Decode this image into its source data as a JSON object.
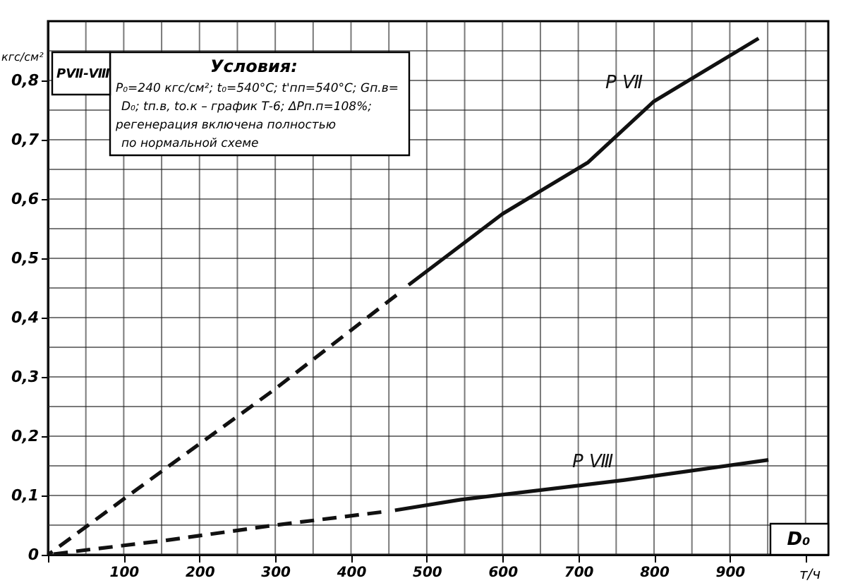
{
  "chart_data": {
    "type": "line",
    "ylabel": "PⅦ-Ⅷ",
    "xlabel": "D₀",
    "xlim": [
      0,
      1030
    ],
    "ylim": [
      0,
      0.9
    ],
    "xticks": [
      {
        "value": 0,
        "label": null
      },
      {
        "value": 50,
        "label": null
      },
      100,
      {
        "value": 150,
        "label": null
      },
      200,
      {
        "value": 250,
        "label": null
      },
      300,
      {
        "value": 350,
        "label": null
      },
      400,
      {
        "value": 450,
        "label": null
      },
      500,
      {
        "value": 550,
        "label": null
      },
      600,
      {
        "value": 650,
        "label": null
      },
      700,
      {
        "value": 750,
        "label": null
      },
      800,
      {
        "value": 850,
        "label": null
      },
      900,
      {
        "value": 950,
        "label": null
      },
      {
        "value": 1000,
        "label": null
      }
    ],
    "yticks": [
      {
        "value": 0,
        "label": "0"
      },
      {
        "value": 0.05,
        "label": null
      },
      {
        "value": 0.1,
        "label": "0,1"
      },
      {
        "value": 0.15,
        "label": null
      },
      {
        "value": 0.2,
        "label": "0,2"
      },
      {
        "value": 0.25,
        "label": null
      },
      {
        "value": 0.3,
        "label": "0,3"
      },
      {
        "value": 0.35,
        "label": null
      },
      {
        "value": 0.4,
        "label": "0,4"
      },
      {
        "value": 0.45,
        "label": null
      },
      {
        "value": 0.5,
        "label": "0,5"
      },
      {
        "value": 0.55,
        "label": null
      },
      {
        "value": 0.6,
        "label": "0,6"
      },
      {
        "value": 0.65,
        "label": null
      },
      {
        "value": 0.7,
        "label": "0,7"
      },
      {
        "value": 0.75,
        "label": null
      },
      {
        "value": 0.8,
        "label": "0,8"
      },
      {
        "value": 0.85,
        "label": null
      }
    ],
    "grid": true,
    "series": [
      {
        "color": "#111111",
        "line_style": "dashed",
        "x": [
          0,
          117,
          296,
          460
        ],
        "values": [
          0,
          0.11,
          0.276,
          0.438
        ]
      },
      {
        "name": "P Ⅶ",
        "color": "#111111",
        "line_style": "solid",
        "x": [
          476,
          600,
          713,
          800,
          938
        ],
        "values": [
          0.455,
          0.575,
          0.662,
          0.765,
          0.871
        ]
      },
      {
        "color": "#111111",
        "line_style": "dashed",
        "x": [
          0,
          50,
          154,
          300,
          440
        ],
        "values": [
          0,
          0.008,
          0.024,
          0.05,
          0.072
        ]
      },
      {
        "name": "P Ⅷ",
        "color": "#111111",
        "line_style": "solid",
        "x": [
          458,
          545,
          761,
          951
        ],
        "values": [
          0.075,
          0.093,
          0.126,
          0.16
        ]
      }
    ],
    "annotations": [
      "Условия:",
      "P₀=240 кгс/см²; t₀=540°C; t'пп=540°C; Gп.в=",
      "D₀; tп.в, tо.к – график Т-6; ΔPп.п=108%;",
      "регенерация включена полностью",
      "по нормальной схеме",
      "кгс/см²",
      "т/ч"
    ]
  }
}
